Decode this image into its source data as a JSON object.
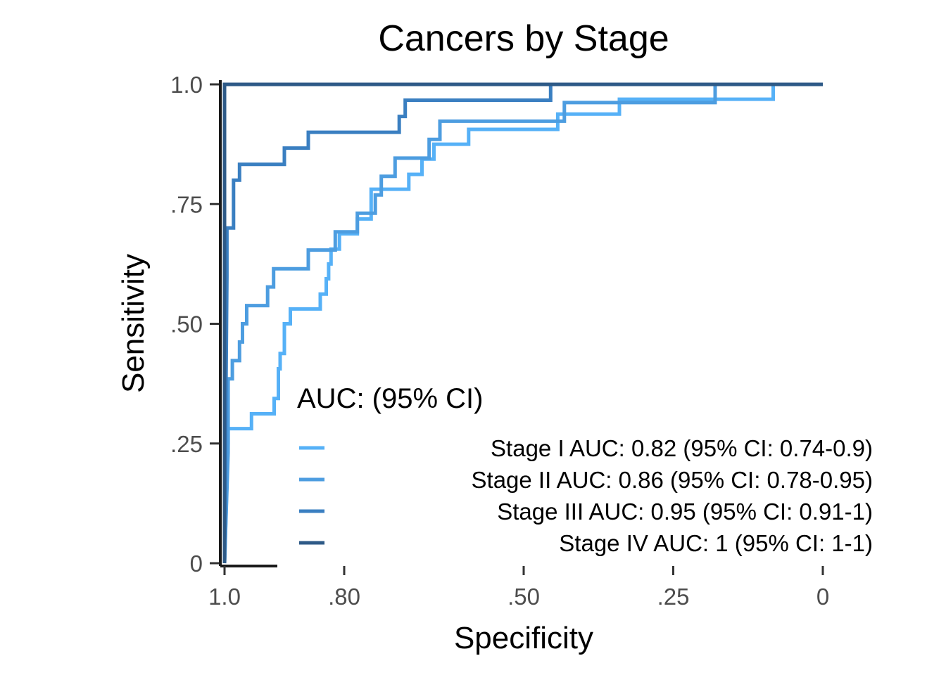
{
  "chart_data": {
    "type": "line",
    "title": "Cancers by Stage",
    "xlabel": "Specificity",
    "ylabel": "Sensitivity",
    "x_reversed": true,
    "xlim": [
      1.0,
      0
    ],
    "ylim": [
      0,
      1.0
    ],
    "x_ticks": [
      1.0,
      0.8,
      0.5,
      0.25,
      0
    ],
    "x_tick_labels": [
      "1.0",
      ".80",
      ".50",
      ".25",
      "0"
    ],
    "y_ticks": [
      0,
      0.25,
      0.5,
      0.75,
      1.0
    ],
    "y_tick_labels": [
      "0",
      ".25",
      ".50",
      ".75",
      "1.0"
    ],
    "grid": false,
    "legend": {
      "title": "AUC: (95% CI)",
      "placement": "bottom-right inside"
    },
    "series": [
      {
        "name": "Stage I AUC: 0.82 (95% CI: 0.74-0.9)",
        "color": "#56B1F7",
        "points": [
          [
            1.0,
            0.0
          ],
          [
            0.994,
            0.25
          ],
          [
            0.994,
            0.281
          ],
          [
            0.955,
            0.281
          ],
          [
            0.955,
            0.312
          ],
          [
            0.917,
            0.312
          ],
          [
            0.917,
            0.344
          ],
          [
            0.91,
            0.344
          ],
          [
            0.91,
            0.406
          ],
          [
            0.907,
            0.406
          ],
          [
            0.907,
            0.438
          ],
          [
            0.9,
            0.438
          ],
          [
            0.9,
            0.5
          ],
          [
            0.89,
            0.5
          ],
          [
            0.89,
            0.531
          ],
          [
            0.84,
            0.531
          ],
          [
            0.84,
            0.562
          ],
          [
            0.83,
            0.562
          ],
          [
            0.83,
            0.594
          ],
          [
            0.826,
            0.594
          ],
          [
            0.826,
            0.625
          ],
          [
            0.822,
            0.625
          ],
          [
            0.822,
            0.656
          ],
          [
            0.808,
            0.656
          ],
          [
            0.808,
            0.688
          ],
          [
            0.778,
            0.688
          ],
          [
            0.778,
            0.719
          ],
          [
            0.755,
            0.719
          ],
          [
            0.755,
            0.781
          ],
          [
            0.692,
            0.781
          ],
          [
            0.692,
            0.812
          ],
          [
            0.67,
            0.812
          ],
          [
            0.67,
            0.844
          ],
          [
            0.65,
            0.844
          ],
          [
            0.65,
            0.875
          ],
          [
            0.592,
            0.875
          ],
          [
            0.592,
            0.906
          ],
          [
            0.443,
            0.906
          ],
          [
            0.443,
            0.938
          ],
          [
            0.34,
            0.938
          ],
          [
            0.34,
            0.969
          ],
          [
            0.083,
            0.969
          ],
          [
            0.083,
            1.0
          ],
          [
            0.0,
            1.0
          ]
        ]
      },
      {
        "name": "Stage II AUC: 0.86 (95% CI: 0.78-0.95)",
        "color": "#4D9DE0",
        "points": [
          [
            1.0,
            0.0
          ],
          [
            0.994,
            0.231
          ],
          [
            0.994,
            0.385
          ],
          [
            0.987,
            0.385
          ],
          [
            0.987,
            0.423
          ],
          [
            0.975,
            0.423
          ],
          [
            0.975,
            0.462
          ],
          [
            0.97,
            0.462
          ],
          [
            0.97,
            0.5
          ],
          [
            0.963,
            0.5
          ],
          [
            0.963,
            0.538
          ],
          [
            0.928,
            0.538
          ],
          [
            0.928,
            0.577
          ],
          [
            0.918,
            0.577
          ],
          [
            0.918,
            0.615
          ],
          [
            0.86,
            0.615
          ],
          [
            0.86,
            0.654
          ],
          [
            0.815,
            0.654
          ],
          [
            0.815,
            0.692
          ],
          [
            0.778,
            0.692
          ],
          [
            0.778,
            0.731
          ],
          [
            0.748,
            0.731
          ],
          [
            0.748,
            0.769
          ],
          [
            0.738,
            0.769
          ],
          [
            0.738,
            0.808
          ],
          [
            0.715,
            0.808
          ],
          [
            0.715,
            0.846
          ],
          [
            0.658,
            0.846
          ],
          [
            0.658,
            0.885
          ],
          [
            0.64,
            0.885
          ],
          [
            0.64,
            0.923
          ],
          [
            0.432,
            0.923
          ],
          [
            0.432,
            0.962
          ],
          [
            0.18,
            0.962
          ],
          [
            0.18,
            1.0
          ],
          [
            0.0,
            1.0
          ]
        ]
      },
      {
        "name": "Stage III AUC: 0.95 (95% CI: 0.91-1)",
        "color": "#3A7FC1",
        "points": [
          [
            1.0,
            0.0
          ],
          [
            0.996,
            0.6
          ],
          [
            0.996,
            0.7
          ],
          [
            0.985,
            0.7
          ],
          [
            0.985,
            0.8
          ],
          [
            0.975,
            0.8
          ],
          [
            0.975,
            0.833
          ],
          [
            0.9,
            0.833
          ],
          [
            0.9,
            0.867
          ],
          [
            0.86,
            0.867
          ],
          [
            0.86,
            0.9
          ],
          [
            0.708,
            0.9
          ],
          [
            0.708,
            0.933
          ],
          [
            0.698,
            0.933
          ],
          [
            0.698,
            0.967
          ],
          [
            0.455,
            0.967
          ],
          [
            0.455,
            1.0
          ],
          [
            0.0,
            1.0
          ]
        ]
      },
      {
        "name": "Stage IV AUC: 1 (95% CI: 1-1)",
        "color": "#2E5A87",
        "points": [
          [
            1.0,
            0.0
          ],
          [
            1.0,
            1.0
          ],
          [
            0.0,
            1.0
          ]
        ]
      }
    ]
  }
}
